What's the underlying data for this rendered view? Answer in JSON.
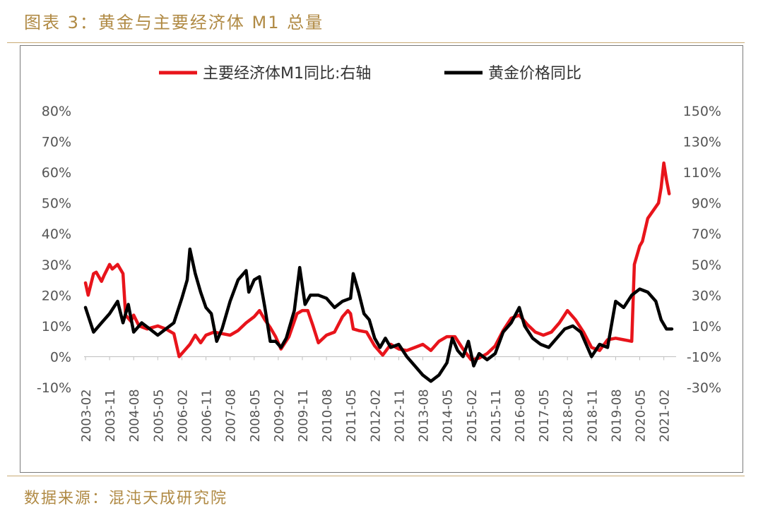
{
  "header": {
    "title": "图表 3：黄金与主要经济体 M1 总量"
  },
  "footer": {
    "source": "数据来源：混沌天成研究院"
  },
  "colors": {
    "accent_gold": "#b08a44",
    "series_m1": "#e8141b",
    "series_gold": "#000000",
    "rule": "#c9ab74"
  },
  "chart_data": {
    "type": "line",
    "legend": {
      "placement": "top",
      "entries": [
        "主要经济体M1同比:右轴",
        "黄金价格同比"
      ]
    },
    "x_ticks": [
      "2003-02",
      "2003-11",
      "2004-08",
      "2005-05",
      "2006-02",
      "2006-11",
      "2007-08",
      "2008-05",
      "2009-02",
      "2009-11",
      "2010-08",
      "2011-05",
      "2012-02",
      "2012-11",
      "2013-08",
      "2014-05",
      "2015-02",
      "2015-11",
      "2016-08",
      "2017-05",
      "2018-02",
      "2018-11",
      "2019-08",
      "2020-05",
      "2021-02"
    ],
    "y_left": {
      "min": -0.1,
      "max": 0.8,
      "ticks": [
        -0.1,
        0,
        0.1,
        0.2,
        0.3,
        0.4,
        0.5,
        0.6,
        0.7,
        0.8
      ],
      "tick_labels": [
        "-10%",
        "0%",
        "10%",
        "20%",
        "30%",
        "40%",
        "50%",
        "60%",
        "70%",
        "80%"
      ]
    },
    "y_right": {
      "min": -0.3,
      "max": 1.5,
      "ticks": [
        -0.3,
        -0.1,
        0.1,
        0.3,
        0.5,
        0.7,
        0.9,
        1.1,
        1.3,
        1.5
      ],
      "tick_labels": [
        "-30%",
        "-10%",
        "10%",
        "30%",
        "50%",
        "70%",
        "90%",
        "110%",
        "130%",
        "150%"
      ]
    },
    "series": [
      {
        "name": "主要经济体M1同比:右轴",
        "axis": "right",
        "color": "#e8141b",
        "points": [
          [
            "2003-02",
            0.38
          ],
          [
            "2003-03",
            0.3
          ],
          [
            "2003-05",
            0.44
          ],
          [
            "2003-06",
            0.45
          ],
          [
            "2003-08",
            0.39
          ],
          [
            "2003-09",
            0.43
          ],
          [
            "2003-11",
            0.5
          ],
          [
            "2003-12",
            0.47
          ],
          [
            "2004-02",
            0.5
          ],
          [
            "2004-04",
            0.44
          ],
          [
            "2004-05",
            0.17
          ],
          [
            "2004-07",
            0.13
          ],
          [
            "2004-08",
            0.17
          ],
          [
            "2004-10",
            0.1
          ],
          [
            "2005-01",
            0.08
          ],
          [
            "2005-05",
            0.1
          ],
          [
            "2005-08",
            0.08
          ],
          [
            "2005-11",
            0.05
          ],
          [
            "2006-01",
            -0.1
          ],
          [
            "2006-03",
            -0.06
          ],
          [
            "2006-05",
            -0.02
          ],
          [
            "2006-07",
            0.04
          ],
          [
            "2006-09",
            -0.01
          ],
          [
            "2006-11",
            0.04
          ],
          [
            "2007-02",
            0.06
          ],
          [
            "2007-05",
            0.05
          ],
          [
            "2007-08",
            0.04
          ],
          [
            "2007-11",
            0.07
          ],
          [
            "2008-02",
            0.12
          ],
          [
            "2008-05",
            0.16
          ],
          [
            "2008-07",
            0.2
          ],
          [
            "2008-09",
            0.14
          ],
          [
            "2008-11",
            0.09
          ],
          [
            "2009-01",
            0.03
          ],
          [
            "2009-03",
            -0.05
          ],
          [
            "2009-06",
            0.03
          ],
          [
            "2009-09",
            0.18
          ],
          [
            "2009-11",
            0.2
          ],
          [
            "2010-01",
            0.2
          ],
          [
            "2010-03",
            0.1
          ],
          [
            "2010-05",
            -0.01
          ],
          [
            "2010-08",
            0.04
          ],
          [
            "2010-11",
            0.06
          ],
          [
            "2011-02",
            0.16
          ],
          [
            "2011-04",
            0.2
          ],
          [
            "2011-05",
            0.18
          ],
          [
            "2011-06",
            0.08
          ],
          [
            "2011-08",
            0.07
          ],
          [
            "2011-11",
            0.06
          ],
          [
            "2012-02",
            -0.03
          ],
          [
            "2012-05",
            -0.09
          ],
          [
            "2012-08",
            -0.02
          ],
          [
            "2012-11",
            -0.05
          ],
          [
            "2013-02",
            -0.06
          ],
          [
            "2013-05",
            -0.04
          ],
          [
            "2013-08",
            -0.02
          ],
          [
            "2013-11",
            -0.06
          ],
          [
            "2014-02",
            0.0
          ],
          [
            "2014-05",
            0.03
          ],
          [
            "2014-08",
            0.03
          ],
          [
            "2014-11",
            -0.05
          ],
          [
            "2015-02",
            -0.12
          ],
          [
            "2015-05",
            -0.11
          ],
          [
            "2015-08",
            -0.08
          ],
          [
            "2015-11",
            -0.03
          ],
          [
            "2016-02",
            0.07
          ],
          [
            "2016-05",
            0.15
          ],
          [
            "2016-08",
            0.17
          ],
          [
            "2016-11",
            0.11
          ],
          [
            "2017-02",
            0.06
          ],
          [
            "2017-05",
            0.04
          ],
          [
            "2017-08",
            0.06
          ],
          [
            "2017-11",
            0.12
          ],
          [
            "2018-02",
            0.2
          ],
          [
            "2018-05",
            0.14
          ],
          [
            "2018-08",
            0.06
          ],
          [
            "2018-11",
            -0.04
          ],
          [
            "2019-02",
            -0.06
          ],
          [
            "2019-05",
            0.01
          ],
          [
            "2019-08",
            0.02
          ],
          [
            "2019-11",
            0.01
          ],
          [
            "2020-02",
            0.0
          ],
          [
            "2020-03",
            0.5
          ],
          [
            "2020-05",
            0.62
          ],
          [
            "2020-06",
            0.65
          ],
          [
            "2020-08",
            0.8
          ],
          [
            "2020-10",
            0.85
          ],
          [
            "2020-12",
            0.9
          ],
          [
            "2021-01",
            1.0
          ],
          [
            "2021-02",
            1.16
          ],
          [
            "2021-03",
            1.05
          ],
          [
            "2021-04",
            0.96
          ]
        ]
      },
      {
        "name": "黄金价格同比",
        "axis": "left",
        "color": "#000000",
        "points": [
          [
            "2003-02",
            0.16
          ],
          [
            "2003-05",
            0.08
          ],
          [
            "2003-08",
            0.11
          ],
          [
            "2003-11",
            0.14
          ],
          [
            "2004-02",
            0.18
          ],
          [
            "2004-04",
            0.11
          ],
          [
            "2004-06",
            0.17
          ],
          [
            "2004-08",
            0.08
          ],
          [
            "2004-11",
            0.11
          ],
          [
            "2005-02",
            0.09
          ],
          [
            "2005-05",
            0.07
          ],
          [
            "2005-08",
            0.09
          ],
          [
            "2005-11",
            0.11
          ],
          [
            "2006-02",
            0.19
          ],
          [
            "2006-04",
            0.25
          ],
          [
            "2006-05",
            0.35
          ],
          [
            "2006-07",
            0.27
          ],
          [
            "2006-09",
            0.21
          ],
          [
            "2006-11",
            0.16
          ],
          [
            "2007-01",
            0.14
          ],
          [
            "2007-03",
            0.05
          ],
          [
            "2007-05",
            0.09
          ],
          [
            "2007-08",
            0.18
          ],
          [
            "2007-11",
            0.25
          ],
          [
            "2008-02",
            0.28
          ],
          [
            "2008-03",
            0.21
          ],
          [
            "2008-05",
            0.25
          ],
          [
            "2008-07",
            0.26
          ],
          [
            "2008-09",
            0.16
          ],
          [
            "2008-11",
            0.05
          ],
          [
            "2009-01",
            0.05
          ],
          [
            "2009-03",
            0.03
          ],
          [
            "2009-05",
            0.06
          ],
          [
            "2009-08",
            0.15
          ],
          [
            "2009-10",
            0.29
          ],
          [
            "2009-12",
            0.17
          ],
          [
            "2010-02",
            0.2
          ],
          [
            "2010-05",
            0.2
          ],
          [
            "2010-08",
            0.19
          ],
          [
            "2010-11",
            0.16
          ],
          [
            "2011-02",
            0.18
          ],
          [
            "2011-05",
            0.19
          ],
          [
            "2011-06",
            0.27
          ],
          [
            "2011-08",
            0.21
          ],
          [
            "2011-10",
            0.14
          ],
          [
            "2011-12",
            0.12
          ],
          [
            "2012-02",
            0.06
          ],
          [
            "2012-04",
            0.03
          ],
          [
            "2012-06",
            0.06
          ],
          [
            "2012-08",
            0.03
          ],
          [
            "2012-11",
            0.04
          ],
          [
            "2013-02",
            0.0
          ],
          [
            "2013-05",
            -0.03
          ],
          [
            "2013-08",
            -0.06
          ],
          [
            "2013-11",
            -0.08
          ],
          [
            "2014-02",
            -0.06
          ],
          [
            "2014-05",
            -0.02
          ],
          [
            "2014-07",
            0.06
          ],
          [
            "2014-09",
            0.02
          ],
          [
            "2014-11",
            0.0
          ],
          [
            "2015-01",
            0.05
          ],
          [
            "2015-03",
            -0.03
          ],
          [
            "2015-05",
            0.01
          ],
          [
            "2015-08",
            -0.01
          ],
          [
            "2015-11",
            0.01
          ],
          [
            "2016-02",
            0.08
          ],
          [
            "2016-05",
            0.11
          ],
          [
            "2016-08",
            0.16
          ],
          [
            "2016-10",
            0.1
          ],
          [
            "2017-01",
            0.06
          ],
          [
            "2017-04",
            0.04
          ],
          [
            "2017-07",
            0.03
          ],
          [
            "2017-10",
            0.06
          ],
          [
            "2018-01",
            0.09
          ],
          [
            "2018-04",
            0.1
          ],
          [
            "2018-07",
            0.08
          ],
          [
            "2018-09",
            0.04
          ],
          [
            "2018-11",
            0.0
          ],
          [
            "2019-02",
            0.04
          ],
          [
            "2019-05",
            0.03
          ],
          [
            "2019-08",
            0.18
          ],
          [
            "2019-11",
            0.16
          ],
          [
            "2020-02",
            0.2
          ],
          [
            "2020-05",
            0.22
          ],
          [
            "2020-08",
            0.21
          ],
          [
            "2020-11",
            0.18
          ],
          [
            "2021-01",
            0.12
          ],
          [
            "2021-03",
            0.09
          ],
          [
            "2021-05",
            0.09
          ]
        ]
      }
    ]
  }
}
